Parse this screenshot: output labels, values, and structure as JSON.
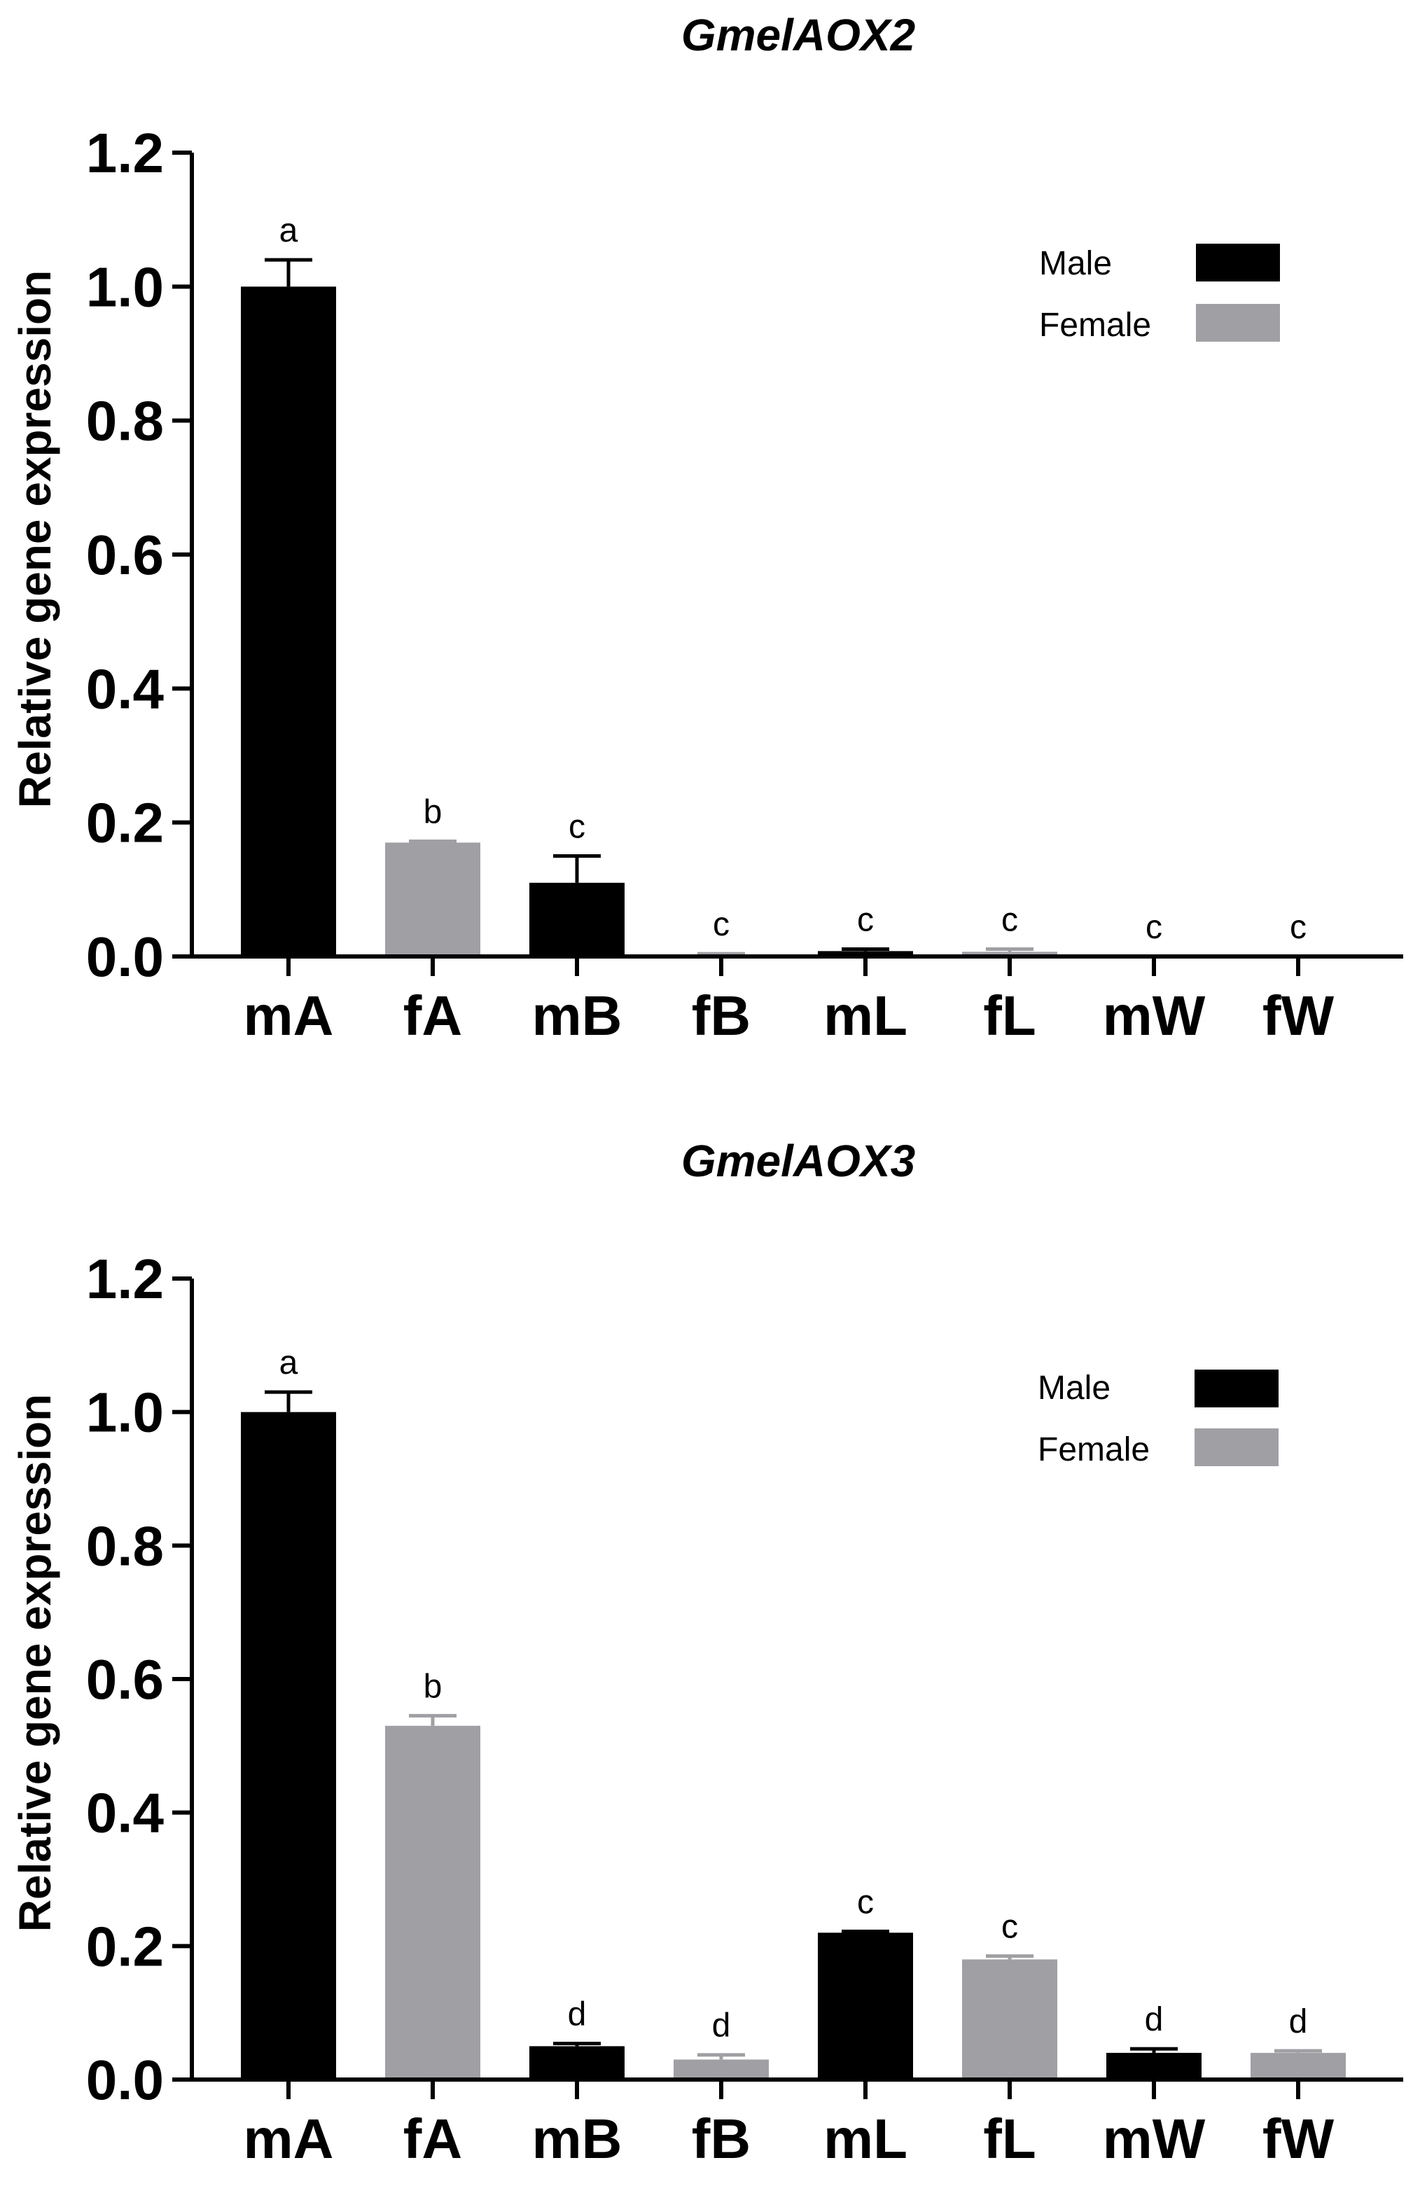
{
  "colors": {
    "male": "#000000",
    "female": "#a0a0a4",
    "axis": "#000000"
  },
  "chart_data": [
    {
      "type": "bar",
      "title": "GmelAOX2",
      "ylabel": "Relative gene expression",
      "xlabel": "",
      "ylim": [
        0,
        1.2
      ],
      "yticks": [
        "0.0",
        "0.2",
        "0.4",
        "0.6",
        "0.8",
        "1.0",
        "1.2"
      ],
      "categories": [
        "mA",
        "fA",
        "mB",
        "fB",
        "mL",
        "fL",
        "mW",
        "fW"
      ],
      "sex": [
        "male",
        "female",
        "male",
        "female",
        "male",
        "female",
        "male",
        "female"
      ],
      "values": [
        1.0,
        0.17,
        0.11,
        0.003,
        0.008,
        0.007,
        0.0,
        0.0
      ],
      "errors": [
        0.04,
        0.002,
        0.04,
        0.001,
        0.003,
        0.004,
        0.0,
        0.0
      ],
      "letters": [
        "a",
        "b",
        "c",
        "c",
        "c",
        "c",
        "c",
        "c"
      ],
      "legend": {
        "male": "Male",
        "female": "Female",
        "position": "top-right"
      }
    },
    {
      "type": "bar",
      "title": "GmelAOX3",
      "ylabel": "Relative gene expression",
      "xlabel": "",
      "ylim": [
        0,
        1.2
      ],
      "yticks": [
        "0.0",
        "0.2",
        "0.4",
        "0.6",
        "0.8",
        "1.0",
        "1.2"
      ],
      "categories": [
        "mA",
        "fA",
        "mB",
        "fB",
        "mL",
        "fL",
        "mW",
        "fW"
      ],
      "sex": [
        "male",
        "female",
        "male",
        "female",
        "male",
        "female",
        "male",
        "female"
      ],
      "values": [
        1.0,
        0.53,
        0.05,
        0.03,
        0.22,
        0.18,
        0.04,
        0.04
      ],
      "errors": [
        0.03,
        0.015,
        0.004,
        0.007,
        0.002,
        0.005,
        0.006,
        0.003
      ],
      "letters": [
        "a",
        "b",
        "d",
        "d",
        "c",
        "c",
        "d",
        "d"
      ],
      "legend": {
        "male": "Male",
        "female": "Female",
        "position": "top-right"
      }
    }
  ]
}
